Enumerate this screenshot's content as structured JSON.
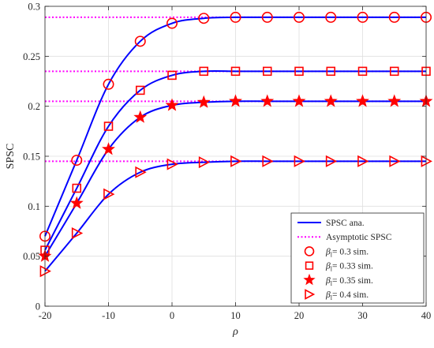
{
  "chart_data": {
    "type": "line",
    "xlabel": "ρ",
    "ylabel": "SPSC",
    "xlim": [
      -20,
      40
    ],
    "ylim": [
      0,
      0.3
    ],
    "x_ticks": [
      -20,
      -10,
      0,
      10,
      20,
      30,
      40
    ],
    "x_tick_labels": [
      "-20",
      "-10",
      "0",
      "10",
      "20",
      "30",
      "40"
    ],
    "y_ticks": [
      0,
      0.05,
      0.1,
      0.15,
      0.2,
      0.25,
      0.3
    ],
    "y_tick_labels": [
      "0",
      "0.05",
      "0.1",
      "0.15",
      "0.2",
      "0.25",
      "0.3"
    ],
    "grid": true,
    "legend_position": "bottom-right",
    "colors": {
      "analytic": "#0000ff",
      "asymptotic": "#ff00ff",
      "markers": "#ff0000"
    },
    "x": [
      -20,
      -15,
      -10,
      -5,
      0,
      5,
      10,
      15,
      20,
      25,
      30,
      35,
      40
    ],
    "series": [
      {
        "beta": "0.3",
        "marker": "circle",
        "asymptote": 0.289,
        "values": [
          0.07,
          0.146,
          0.222,
          0.265,
          0.283,
          0.288,
          0.289,
          0.289,
          0.289,
          0.289,
          0.289,
          0.289,
          0.289
        ]
      },
      {
        "beta": "0.33",
        "marker": "square",
        "asymptote": 0.235,
        "values": [
          0.056,
          0.118,
          0.18,
          0.216,
          0.231,
          0.235,
          0.235,
          0.235,
          0.235,
          0.235,
          0.235,
          0.235,
          0.235
        ]
      },
      {
        "beta": "0.35",
        "marker": "star",
        "asymptote": 0.205,
        "values": [
          0.05,
          0.103,
          0.157,
          0.189,
          0.201,
          0.204,
          0.205,
          0.205,
          0.205,
          0.205,
          0.205,
          0.205,
          0.205
        ]
      },
      {
        "beta": "0.4",
        "marker": "triangle-right",
        "asymptote": 0.145,
        "values": [
          0.035,
          0.073,
          0.112,
          0.134,
          0.142,
          0.144,
          0.145,
          0.145,
          0.145,
          0.145,
          0.145,
          0.145,
          0.145
        ]
      }
    ],
    "legend": [
      {
        "label": "SPSC ana.",
        "kind": "analytic"
      },
      {
        "label": "Asymptotic SPSC",
        "kind": "asymptotic"
      },
      {
        "symbol": "β",
        "sub": "l",
        "rest": "= 0.3 sim.",
        "kind": "circle"
      },
      {
        "symbol": "β",
        "sub": "l",
        "rest": "= 0.33 sim.",
        "kind": "square"
      },
      {
        "symbol": "β",
        "sub": "l",
        "rest": "= 0.35 sim.",
        "kind": "star"
      },
      {
        "symbol": "β",
        "sub": "l",
        "rest": "= 0.4 sim.",
        "kind": "triangle-right"
      }
    ]
  }
}
